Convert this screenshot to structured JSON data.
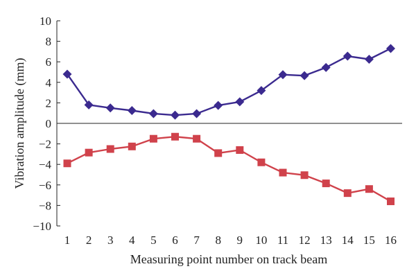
{
  "chart_data": {
    "type": "line",
    "title": "",
    "xlabel": "Measuring point number on track beam",
    "ylabel": "Vibration amplitude (mm)",
    "x": [
      1,
      2,
      3,
      4,
      5,
      6,
      7,
      8,
      9,
      10,
      11,
      12,
      13,
      14,
      15,
      16
    ],
    "xticks": [
      "1",
      "2",
      "3",
      "4",
      "5",
      "6",
      "7",
      "8",
      "9",
      "10",
      "11",
      "12",
      "13",
      "14",
      "15",
      "16"
    ],
    "yticks": [
      "10",
      "8",
      "6",
      "4",
      "2",
      "0",
      "−2",
      "−4",
      "−6",
      "−8",
      "−10"
    ],
    "ylim": [
      -10,
      10
    ],
    "grid": false,
    "legend": false,
    "series": [
      {
        "values": [
          4.8,
          1.8,
          1.5,
          1.25,
          0.95,
          0.8,
          0.95,
          1.75,
          2.1,
          3.2,
          4.75,
          4.65,
          5.45,
          6.55,
          6.25,
          7.3
        ],
        "color": "#3b2a8f",
        "marker": "diamond"
      },
      {
        "values": [
          -3.9,
          -2.85,
          -2.5,
          -2.25,
          -1.5,
          -1.3,
          -1.5,
          -2.9,
          -2.6,
          -3.8,
          -4.8,
          -5.05,
          -5.85,
          -6.8,
          -6.4,
          -7.6
        ],
        "color": "#d0424b",
        "marker": "square"
      }
    ]
  }
}
